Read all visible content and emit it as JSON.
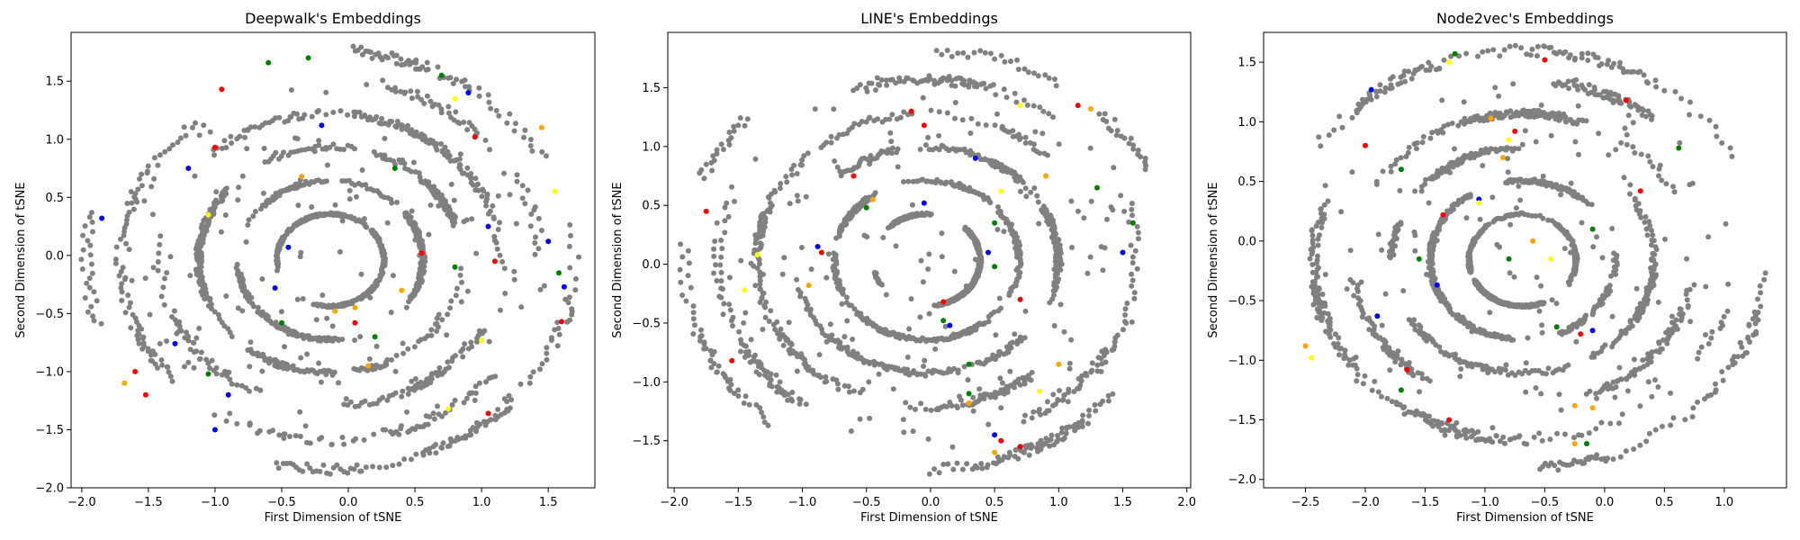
{
  "chart_data": [
    {
      "type": "scatter",
      "title": "Deepwalk's Embeddings",
      "xlabel": "First Dimension of tSNE",
      "ylabel": "Second Dimension of tSNE",
      "xlim": [
        -2.08,
        1.85
      ],
      "ylim": [
        -2.0,
        1.92
      ],
      "xticks": [
        -2.0,
        -1.5,
        -1.0,
        -0.5,
        0.0,
        0.5,
        1.0,
        1.5
      ],
      "yticks": [
        -2.0,
        -1.5,
        -1.0,
        -0.5,
        0.0,
        0.5,
        1.0,
        1.5
      ],
      "xtick_labels": [
        "−2.0",
        "−1.5",
        "−1.0",
        "−0.5",
        "0.0",
        "0.5",
        "1.0",
        "1.5"
      ],
      "ytick_labels": [
        "−2.0",
        "−1.5",
        "−1.0",
        "−0.5",
        "0.0",
        "0.5",
        "1.0",
        "1.5"
      ],
      "series": [
        {
          "color": "#ff0000",
          "points": [
            [
              -0.95,
              1.43
            ],
            [
              -1.0,
              0.93
            ],
            [
              0.95,
              1.02
            ],
            [
              1.1,
              -0.05
            ],
            [
              -1.6,
              -1.0
            ],
            [
              -1.52,
              -1.2
            ],
            [
              0.05,
              -0.58
            ],
            [
              0.55,
              0.02
            ],
            [
              1.05,
              -1.36
            ],
            [
              1.6,
              -0.57
            ]
          ]
        },
        {
          "color": "#0000ff",
          "points": [
            [
              0.9,
              1.4
            ],
            [
              -0.2,
              1.12
            ],
            [
              -1.2,
              0.75
            ],
            [
              -1.85,
              0.32
            ],
            [
              -0.45,
              0.07
            ],
            [
              -0.55,
              -0.28
            ],
            [
              1.05,
              0.25
            ],
            [
              1.5,
              0.12
            ],
            [
              1.62,
              -0.27
            ],
            [
              -0.9,
              -1.2
            ],
            [
              -1.3,
              -0.76
            ],
            [
              -1.0,
              -1.5
            ]
          ]
        },
        {
          "color": "#008000",
          "points": [
            [
              -0.6,
              1.66
            ],
            [
              -0.3,
              1.7
            ],
            [
              0.7,
              1.55
            ],
            [
              0.35,
              0.75
            ],
            [
              0.8,
              -0.1
            ],
            [
              0.2,
              -0.7
            ],
            [
              -1.05,
              -1.02
            ],
            [
              1.58,
              -0.15
            ],
            [
              -0.5,
              -0.58
            ]
          ]
        },
        {
          "color": "#ffff00",
          "points": [
            [
              0.8,
              1.35
            ],
            [
              -1.05,
              0.35
            ],
            [
              1.55,
              0.55
            ],
            [
              1.0,
              -0.73
            ],
            [
              0.75,
              -1.32
            ]
          ]
        },
        {
          "color": "#ffa500",
          "points": [
            [
              0.15,
              -0.95
            ],
            [
              -0.35,
              0.68
            ],
            [
              0.05,
              -0.45
            ],
            [
              1.45,
              1.1
            ],
            [
              -1.68,
              -1.1
            ],
            [
              0.4,
              -0.3
            ],
            [
              -0.1,
              -0.48
            ]
          ]
        }
      ],
      "base_color": "#808080"
    },
    {
      "type": "scatter",
      "title": "LINE's Embeddings",
      "xlabel": "First Dimension of tSNE",
      "ylabel": "Second Dimension of tSNE",
      "xlim": [
        -2.05,
        2.03
      ],
      "ylim": [
        -1.9,
        1.97
      ],
      "xticks": [
        -2.0,
        -1.5,
        -1.0,
        -0.5,
        0.0,
        0.5,
        1.0,
        1.5,
        2.0
      ],
      "yticks": [
        -1.5,
        -1.0,
        -0.5,
        0.0,
        0.5,
        1.0,
        1.5
      ],
      "xtick_labels": [
        "−2.0",
        "−1.5",
        "−1.0",
        "−0.5",
        "0.0",
        "0.5",
        "1.0",
        "1.5",
        "2.0"
      ],
      "ytick_labels": [
        "−1.5",
        "−1.0",
        "−0.5",
        "0.0",
        "0.5",
        "1.0",
        "1.5"
      ],
      "series": [
        {
          "color": "#ff0000",
          "points": [
            [
              -0.15,
              1.3
            ],
            [
              -0.05,
              1.18
            ],
            [
              1.15,
              1.35
            ],
            [
              -1.75,
              0.45
            ],
            [
              -0.6,
              0.75
            ],
            [
              -0.85,
              0.1
            ],
            [
              0.1,
              -0.32
            ],
            [
              0.7,
              -0.3
            ],
            [
              -1.55,
              -0.82
            ],
            [
              0.7,
              -1.55
            ],
            [
              0.55,
              -1.5
            ]
          ]
        },
        {
          "color": "#0000ff",
          "points": [
            [
              -0.05,
              0.52
            ],
            [
              0.45,
              0.1
            ],
            [
              1.5,
              0.1
            ],
            [
              -0.88,
              0.15
            ],
            [
              0.15,
              -0.52
            ],
            [
              0.5,
              -1.45
            ],
            [
              0.35,
              0.9
            ]
          ]
        },
        {
          "color": "#008000",
          "points": [
            [
              -0.5,
              0.48
            ],
            [
              0.5,
              0.35
            ],
            [
              1.58,
              0.35
            ],
            [
              1.3,
              0.65
            ],
            [
              0.5,
              -0.02
            ],
            [
              0.3,
              -0.85
            ],
            [
              0.3,
              -1.1
            ],
            [
              0.1,
              -0.48
            ]
          ]
        },
        {
          "color": "#ffff00",
          "points": [
            [
              0.7,
              1.35
            ],
            [
              -1.35,
              0.08
            ],
            [
              0.55,
              0.62
            ],
            [
              -1.45,
              -0.22
            ],
            [
              0.85,
              -1.08
            ]
          ]
        },
        {
          "color": "#ffa500",
          "points": [
            [
              0.3,
              -1.18
            ],
            [
              0.9,
              0.75
            ],
            [
              1.0,
              -0.85
            ],
            [
              -0.95,
              -0.18
            ],
            [
              0.5,
              -1.6
            ],
            [
              1.25,
              1.32
            ],
            [
              -0.45,
              0.55
            ]
          ]
        }
      ],
      "base_color": "#808080"
    },
    {
      "type": "scatter",
      "title": "Node2vec's Embeddings",
      "xlabel": "First Dimension of tSNE",
      "ylabel": "Second Dimension of tSNE",
      "xlim": [
        -2.85,
        1.52
      ],
      "ylim": [
        -2.07,
        1.75
      ],
      "xticks": [
        -2.5,
        -2.0,
        -1.5,
        -1.0,
        -0.5,
        0.0,
        0.5,
        1.0
      ],
      "yticks": [
        -2.0,
        -1.5,
        -1.0,
        -0.5,
        0.0,
        0.5,
        1.0,
        1.5
      ],
      "xtick_labels": [
        "−2.5",
        "−2.0",
        "−1.5",
        "−1.0",
        "−0.5",
        "0.0",
        "0.5",
        "1.0"
      ],
      "ytick_labels": [
        "−2.0",
        "−1.5",
        "−1.0",
        "−0.5",
        "0.0",
        "0.5",
        "1.0",
        "1.5"
      ],
      "series": [
        {
          "color": "#ff0000",
          "points": [
            [
              -0.5,
              1.52
            ],
            [
              0.18,
              1.18
            ],
            [
              -2.0,
              0.8
            ],
            [
              0.3,
              0.42
            ],
            [
              -1.35,
              0.22
            ],
            [
              -1.65,
              -1.08
            ],
            [
              -1.3,
              -1.5
            ],
            [
              -0.2,
              -0.78
            ],
            [
              -0.75,
              0.92
            ]
          ]
        },
        {
          "color": "#0000ff",
          "points": [
            [
              -1.95,
              1.27
            ],
            [
              -1.05,
              0.35
            ],
            [
              -1.4,
              -0.37
            ],
            [
              -1.9,
              -0.63
            ],
            [
              -0.1,
              -0.75
            ]
          ]
        },
        {
          "color": "#008000",
          "points": [
            [
              -1.25,
              1.57
            ],
            [
              0.62,
              0.78
            ],
            [
              -1.7,
              0.6
            ],
            [
              -1.55,
              -0.15
            ],
            [
              -0.1,
              0.1
            ],
            [
              -1.7,
              -1.25
            ],
            [
              -0.8,
              -0.15
            ],
            [
              -0.4,
              -0.72
            ],
            [
              -0.15,
              -1.7
            ]
          ]
        },
        {
          "color": "#ffff00",
          "points": [
            [
              -1.3,
              1.5
            ],
            [
              -1.05,
              0.32
            ],
            [
              -0.45,
              -0.15
            ],
            [
              -2.45,
              -0.98
            ],
            [
              -0.8,
              0.85
            ]
          ]
        },
        {
          "color": "#ffa500",
          "points": [
            [
              -0.95,
              1.03
            ],
            [
              -0.85,
              0.7
            ],
            [
              -0.1,
              -1.4
            ],
            [
              -0.25,
              -1.38
            ],
            [
              -0.6,
              0.0
            ],
            [
              -2.5,
              -0.88
            ],
            [
              -0.25,
              -1.7
            ]
          ]
        }
      ],
      "base_color": "#808080"
    }
  ]
}
